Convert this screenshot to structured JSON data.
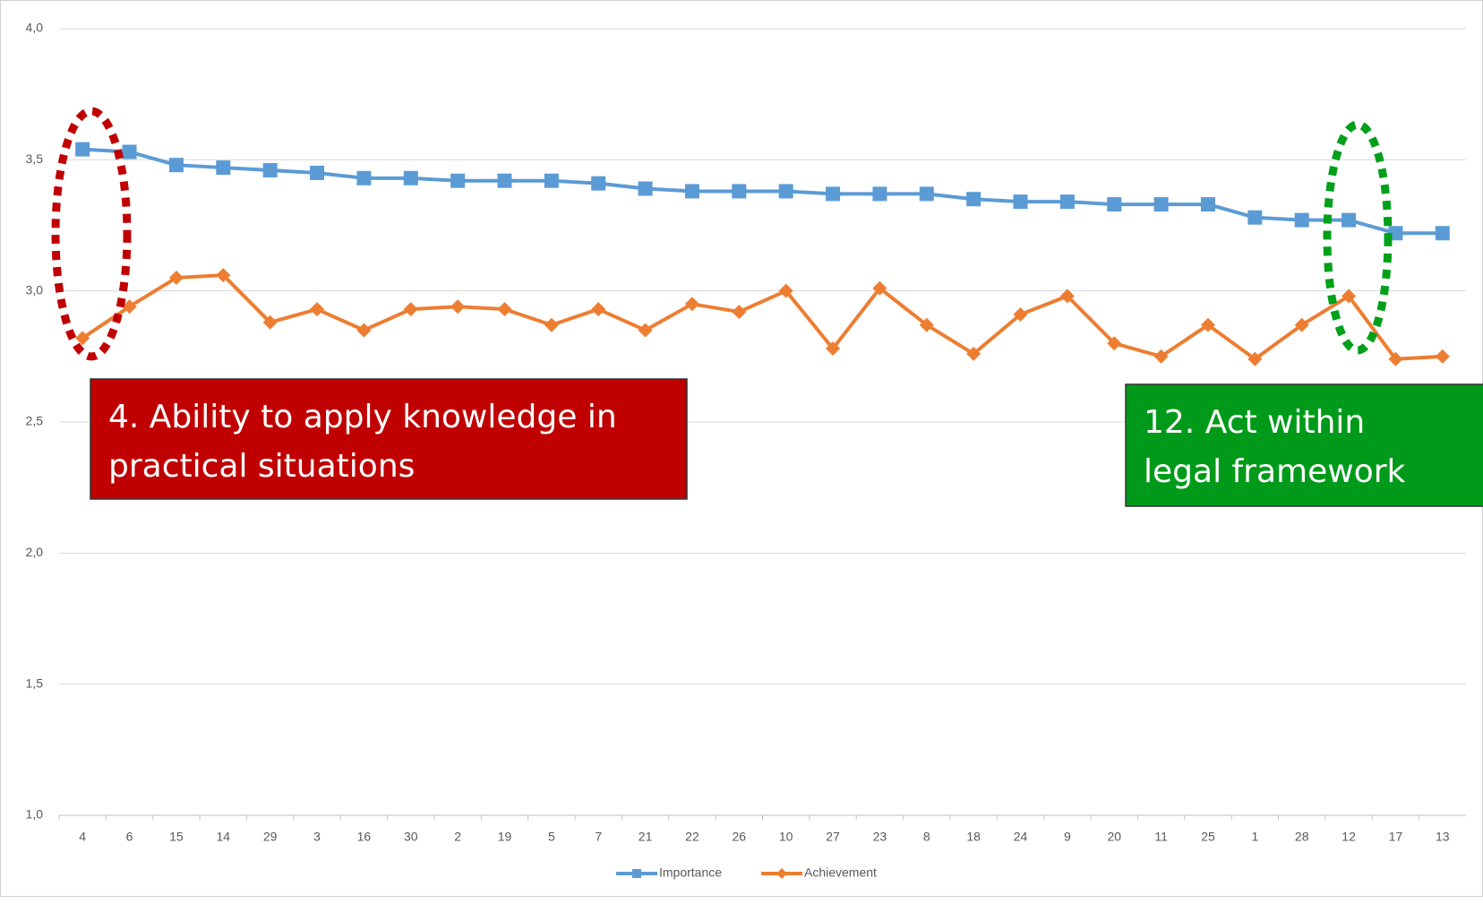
{
  "chart_data": {
    "type": "line",
    "categories": [
      "4",
      "6",
      "15",
      "14",
      "29",
      "3",
      "16",
      "30",
      "2",
      "19",
      "5",
      "7",
      "21",
      "22",
      "26",
      "10",
      "27",
      "23",
      "8",
      "18",
      "24",
      "9",
      "20",
      "11",
      "25",
      "1",
      "28",
      "12",
      "17",
      "13"
    ],
    "series": [
      {
        "name": "Importance",
        "color": "#5b9bd5",
        "marker": "square",
        "values": [
          3.54,
          3.53,
          3.48,
          3.47,
          3.46,
          3.45,
          3.43,
          3.43,
          3.42,
          3.42,
          3.42,
          3.41,
          3.39,
          3.38,
          3.38,
          3.38,
          3.37,
          3.37,
          3.37,
          3.35,
          3.34,
          3.34,
          3.33,
          3.33,
          3.33,
          3.28,
          3.27,
          3.27,
          3.22,
          3.22
        ]
      },
      {
        "name": "Achievement",
        "color": "#ed7d31",
        "marker": "diamond",
        "values": [
          2.82,
          2.94,
          3.05,
          3.06,
          2.88,
          2.93,
          2.85,
          2.93,
          2.94,
          2.93,
          2.87,
          2.93,
          2.85,
          2.95,
          2.92,
          3.0,
          2.78,
          3.01,
          2.87,
          2.76,
          2.91,
          2.98,
          2.8,
          2.75,
          2.87,
          2.74,
          2.87,
          2.98,
          2.74,
          2.75
        ]
      }
    ],
    "ylim": [
      1.0,
      4.0
    ],
    "yticks": [
      {
        "value": 1.0,
        "label": "1,0"
      },
      {
        "value": 1.5,
        "label": "1,5"
      },
      {
        "value": 2.0,
        "label": "2,0"
      },
      {
        "value": 2.5,
        "label": "2,5"
      },
      {
        "value": 3.0,
        "label": "3,0"
      },
      {
        "value": 3.5,
        "label": "3,5"
      },
      {
        "value": 4.0,
        "label": "4,0"
      }
    ],
    "grid": true,
    "legend": "bottom",
    "annotations": [
      {
        "lines": [
          "4. Ability to apply knowledge in",
          "practical situations"
        ],
        "color": "#c00000"
      },
      {
        "lines": [
          "12. Act within",
          "legal framework"
        ],
        "color": "#009a1a"
      }
    ]
  }
}
